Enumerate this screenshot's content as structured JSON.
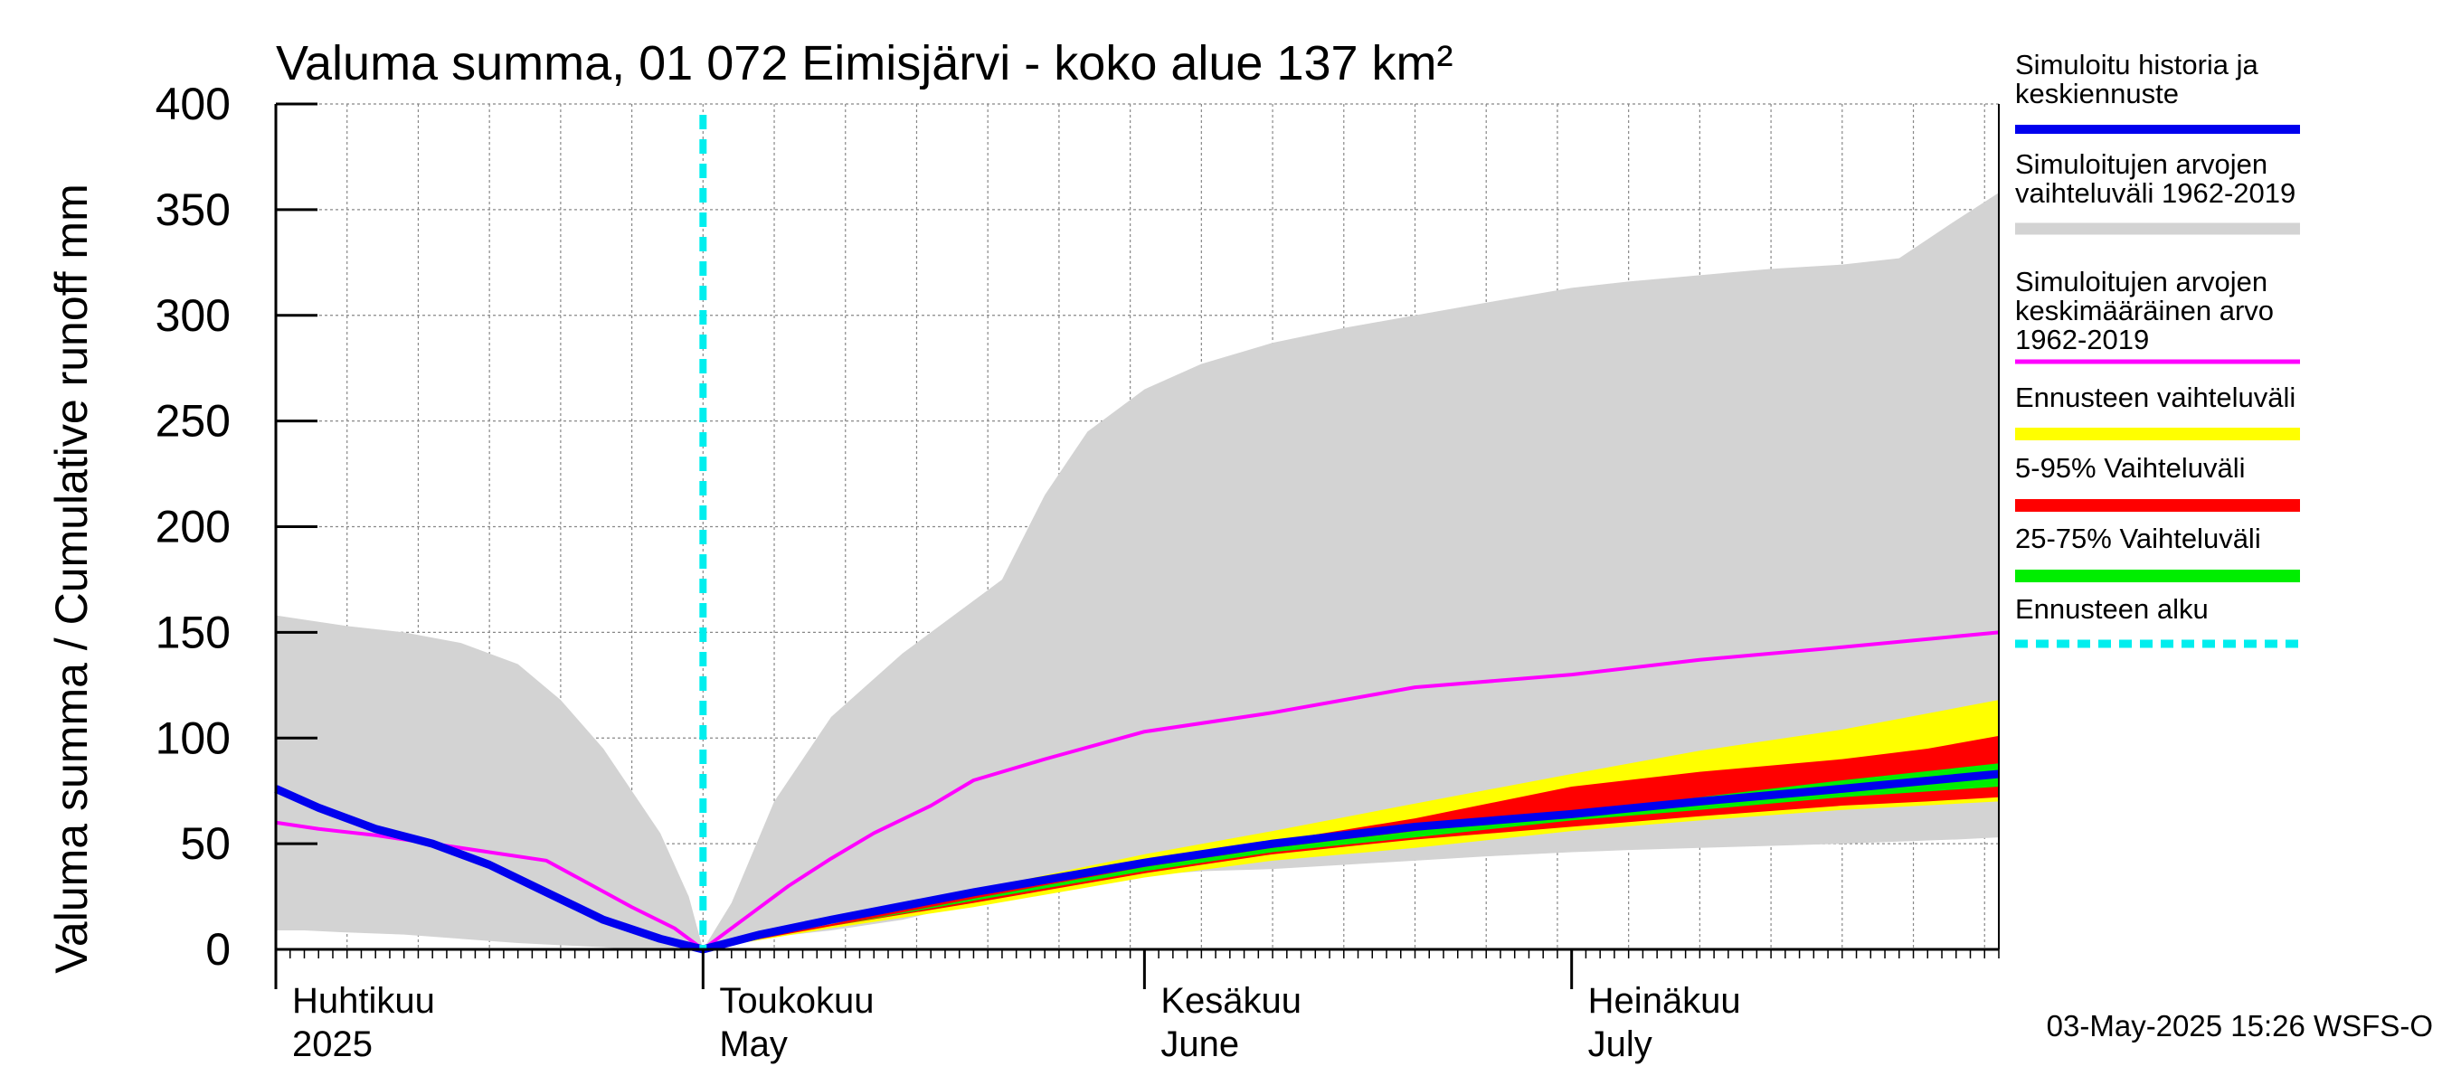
{
  "chart_data": {
    "type": "area",
    "title": "Valuma summa, 01 072 Eimisjärvi - koko alue 137 km²",
    "ylabel": "Valuma summa / Cumulative runoff    mm",
    "ylim": [
      0,
      400
    ],
    "yticks": [
      "0",
      "50",
      "100",
      "150",
      "200",
      "250",
      "300",
      "350",
      "400"
    ],
    "xlim": [
      "2025-04-01",
      "2025-07-31"
    ],
    "grid": true,
    "legend_position": "right",
    "forecast_start": "2025-05-01",
    "months": [
      {
        "fi": "Huhtikuu",
        "en": "2025",
        "date": "2025-04-01"
      },
      {
        "fi": "Toukokuu",
        "en": "May",
        "date": "2025-05-01"
      },
      {
        "fi": "Kesäkuu",
        "en": "June",
        "date": "2025-06-01"
      },
      {
        "fi": "Heinäkuu",
        "en": "July",
        "date": "2025-07-01"
      }
    ],
    "series": [
      {
        "name": "Simuloitujen arvojen vaihteluväli 1962-2019",
        "kind": "band",
        "color": "#d3d3d3",
        "x": [
          "2025-04-01",
          "2025-04-03",
          "2025-04-06",
          "2025-04-10",
          "2025-04-14",
          "2025-04-18",
          "2025-04-21",
          "2025-04-24",
          "2025-04-26",
          "2025-04-28",
          "2025-04-30",
          "2025-05-01",
          "2025-05-03",
          "2025-05-06",
          "2025-05-10",
          "2025-05-15",
          "2025-05-20",
          "2025-05-22",
          "2025-05-25",
          "2025-05-28",
          "2025-06-01",
          "2025-06-05",
          "2025-06-10",
          "2025-06-15",
          "2025-06-20",
          "2025-06-25",
          "2025-07-01",
          "2025-07-05",
          "2025-07-10",
          "2025-07-15",
          "2025-07-20",
          "2025-07-24",
          "2025-07-28",
          "2025-07-31"
        ],
        "upper": [
          158,
          156,
          153,
          150,
          145,
          135,
          118,
          95,
          75,
          55,
          25,
          0,
          22,
          70,
          110,
          140,
          165,
          175,
          215,
          245,
          265,
          277,
          287,
          294,
          300,
          306,
          313,
          316,
          319,
          322,
          324,
          327,
          345,
          358
        ],
        "lower": [
          9,
          9,
          8,
          7,
          5,
          3,
          2,
          1,
          0,
          0,
          0,
          0,
          3,
          6,
          9,
          14,
          22,
          26,
          30,
          32,
          35,
          37,
          38,
          40,
          42,
          44,
          46,
          47,
          48,
          49,
          50,
          51,
          52,
          53
        ]
      },
      {
        "name": "Ennusteen vaihteluväli",
        "kind": "band",
        "color": "#ffff00",
        "x": [
          "2025-05-01",
          "2025-05-10",
          "2025-05-20",
          "2025-06-01",
          "2025-06-10",
          "2025-06-20",
          "2025-07-01",
          "2025-07-10",
          "2025-07-20",
          "2025-07-31"
        ],
        "upper": [
          0,
          12,
          28,
          45,
          56,
          69,
          83,
          94,
          104,
          118
        ],
        "lower": [
          0,
          10,
          20,
          34,
          42,
          48,
          56,
          61,
          66,
          70
        ]
      },
      {
        "name": "5-95% Vaihteluväli",
        "kind": "band",
        "color": "#ff0000",
        "x": [
          "2025-05-01",
          "2025-05-10",
          "2025-05-20",
          "2025-06-01",
          "2025-06-10",
          "2025-06-20",
          "2025-07-01",
          "2025-07-10",
          "2025-07-20",
          "2025-07-26",
          "2025-07-31"
        ],
        "upper": [
          0,
          12,
          26,
          40,
          51,
          62,
          77,
          84,
          90,
          95,
          101
        ],
        "lower": [
          0,
          11,
          22,
          36,
          45,
          52,
          58,
          63,
          68,
          70,
          72
        ]
      },
      {
        "name": "25-75% Vaihteluväli",
        "kind": "band",
        "color": "#00ee00",
        "x": [
          "2025-05-01",
          "2025-05-10",
          "2025-05-20",
          "2025-06-01",
          "2025-06-10",
          "2025-06-20",
          "2025-07-01",
          "2025-07-10",
          "2025-07-20",
          "2025-07-31"
        ],
        "upper": [
          0,
          11,
          24,
          39,
          48,
          56,
          65,
          72,
          80,
          88
        ],
        "lower": [
          0,
          11,
          23,
          37,
          46,
          53,
          61,
          66,
          72,
          77
        ]
      },
      {
        "name": "Simuloitujen arvojen keskimääräinen arvo 1962-2019",
        "kind": "line",
        "color": "#ff00ff",
        "x": [
          "2025-04-01",
          "2025-04-04",
          "2025-04-08",
          "2025-04-12",
          "2025-04-16",
          "2025-04-20",
          "2025-04-23",
          "2025-04-26",
          "2025-04-29",
          "2025-05-01",
          "2025-05-04",
          "2025-05-07",
          "2025-05-10",
          "2025-05-13",
          "2025-05-17",
          "2025-05-20",
          "2025-05-25",
          "2025-06-01",
          "2025-06-10",
          "2025-06-20",
          "2025-07-01",
          "2025-07-10",
          "2025-07-20",
          "2025-07-31"
        ],
        "y": [
          60,
          57,
          54,
          50,
          46,
          42,
          31,
          20,
          10,
          0,
          15,
          30,
          43,
          55,
          68,
          80,
          90,
          103,
          112,
          124,
          130,
          137,
          143,
          150
        ]
      },
      {
        "name": "Simuloitu historia ja keskiennuste",
        "kind": "line",
        "color": "#0000ee",
        "x": [
          "2025-04-01",
          "2025-04-04",
          "2025-04-08",
          "2025-04-12",
          "2025-04-16",
          "2025-04-20",
          "2025-04-24",
          "2025-04-28",
          "2025-05-01",
          "2025-05-05",
          "2025-05-10",
          "2025-05-20",
          "2025-06-01",
          "2025-06-10",
          "2025-06-20",
          "2025-07-01",
          "2025-07-10",
          "2025-07-20",
          "2025-07-31"
        ],
        "y": [
          76,
          67,
          57,
          50,
          40,
          27,
          14,
          5,
          0,
          7,
          14,
          27,
          41,
          50,
          58,
          64,
          70,
          76,
          83
        ]
      }
    ]
  },
  "legend": [
    {
      "label": "Simuloitu historia ja keskiennuste",
      "color": "#0000ee",
      "style": "solid"
    },
    {
      "label": "Simuloitujen arvojen vaihteluväli 1962-2019",
      "color": "#d3d3d3",
      "style": "solid"
    },
    {
      "label": "Simuloitujen arvojen keskimääräinen arvo 1962-2019",
      "color": "#ff00ff",
      "style": "solid"
    },
    {
      "label": "Ennusteen vaihteluväli",
      "color": "#ffff00",
      "style": "solid"
    },
    {
      "label": "5-95% Vaihteluväli",
      "color": "#ff0000",
      "style": "solid"
    },
    {
      "label": "25-75% Vaihteluväli",
      "color": "#00ee00",
      "style": "solid"
    },
    {
      "label": "Ennusteen alku",
      "color": "#00eeee",
      "style": "dashed"
    }
  ],
  "footer": {
    "timestamp": "03-May-2025 15:26 WSFS-O"
  }
}
